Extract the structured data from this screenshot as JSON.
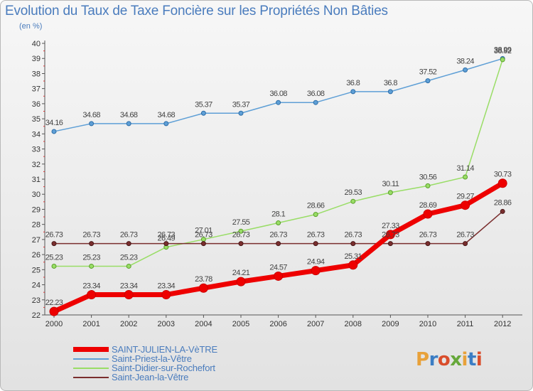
{
  "title": "Evolution du Taux de Taxe Foncière sur les Propriétés Non Bâties",
  "unit_label": "(en %)",
  "logo": {
    "text": "Proxiti",
    "colors": [
      "#e8a13a",
      "#3b7dc4",
      "#d94d2b",
      "#66a83a",
      "#e8a13a",
      "#3b7dc4",
      "#d94d2b"
    ]
  },
  "chart_data": {
    "type": "line",
    "title": "Evolution du Taux de Taxe Foncière sur les Propriétés Non Bâties",
    "ylabel": "(en %)",
    "xlabel": "",
    "x": [
      "2000",
      "2001",
      "2002",
      "2003",
      "2004",
      "2005",
      "2006",
      "2007",
      "2008",
      "2009",
      "2010",
      "2011",
      "2012"
    ],
    "y_ticks": [
      "22",
      "23",
      "24",
      "25",
      "26",
      "27",
      "28",
      "29",
      "30",
      "31",
      "32",
      "33",
      "34",
      "35",
      "36",
      "37",
      "38",
      "39",
      "40"
    ],
    "ylim": [
      22,
      40
    ],
    "grid": false,
    "legend_position": "bottom-left",
    "series": [
      {
        "name": "SAINT-JULIEN-LA-VèTRE",
        "color": "#ee0000",
        "values": [
          22.23,
          23.34,
          23.34,
          23.34,
          23.78,
          24.21,
          24.57,
          24.94,
          25.31,
          27.33,
          28.69,
          29.27,
          30.73
        ],
        "labels": [
          "22.23",
          "23.34",
          "23.34",
          "23.34",
          "23.78",
          "24.21",
          "24.57",
          "24.94",
          "25.31",
          "27.33",
          "28.69",
          "29.27",
          "30.73"
        ]
      },
      {
        "name": "Saint-Priest-la-Vêtre",
        "color": "#5e9fd6",
        "values": [
          34.16,
          34.68,
          34.68,
          34.68,
          35.37,
          35.37,
          36.08,
          36.08,
          36.8,
          36.8,
          37.52,
          38.24,
          38.99
        ],
        "labels": [
          "34.16",
          "34.68",
          "34.68",
          "34.68",
          "35.37",
          "35.37",
          "36.08",
          "36.08",
          "36.8",
          "36.8",
          "37.52",
          "38.24",
          "38.99"
        ]
      },
      {
        "name": "Saint-Didier-sur-Rochefort",
        "color": "#99dd66",
        "values": [
          25.23,
          25.23,
          25.23,
          26.49,
          27.01,
          27.55,
          28.1,
          28.66,
          29.53,
          30.11,
          30.56,
          31.14,
          38.92
        ],
        "labels": [
          "25.23",
          "25.23",
          "25.23",
          "26.49",
          "27.01",
          "27.55",
          "28.1",
          "28.66",
          "29.53",
          "30.11",
          "30.56",
          "31.14",
          "38.92"
        ]
      },
      {
        "name": "Saint-Jean-la-Vêtre",
        "color": "#7a2e2e",
        "values": [
          26.73,
          26.73,
          26.73,
          26.73,
          26.73,
          26.73,
          26.73,
          26.73,
          26.73,
          26.73,
          26.73,
          26.73,
          28.86
        ],
        "labels": [
          "26.73",
          "26.73",
          "26.73",
          "26.73",
          "26.73",
          "26.73",
          "26.73",
          "26.73",
          "26.73",
          "26.73",
          "26.73",
          "26.73",
          "28.86"
        ]
      }
    ]
  }
}
